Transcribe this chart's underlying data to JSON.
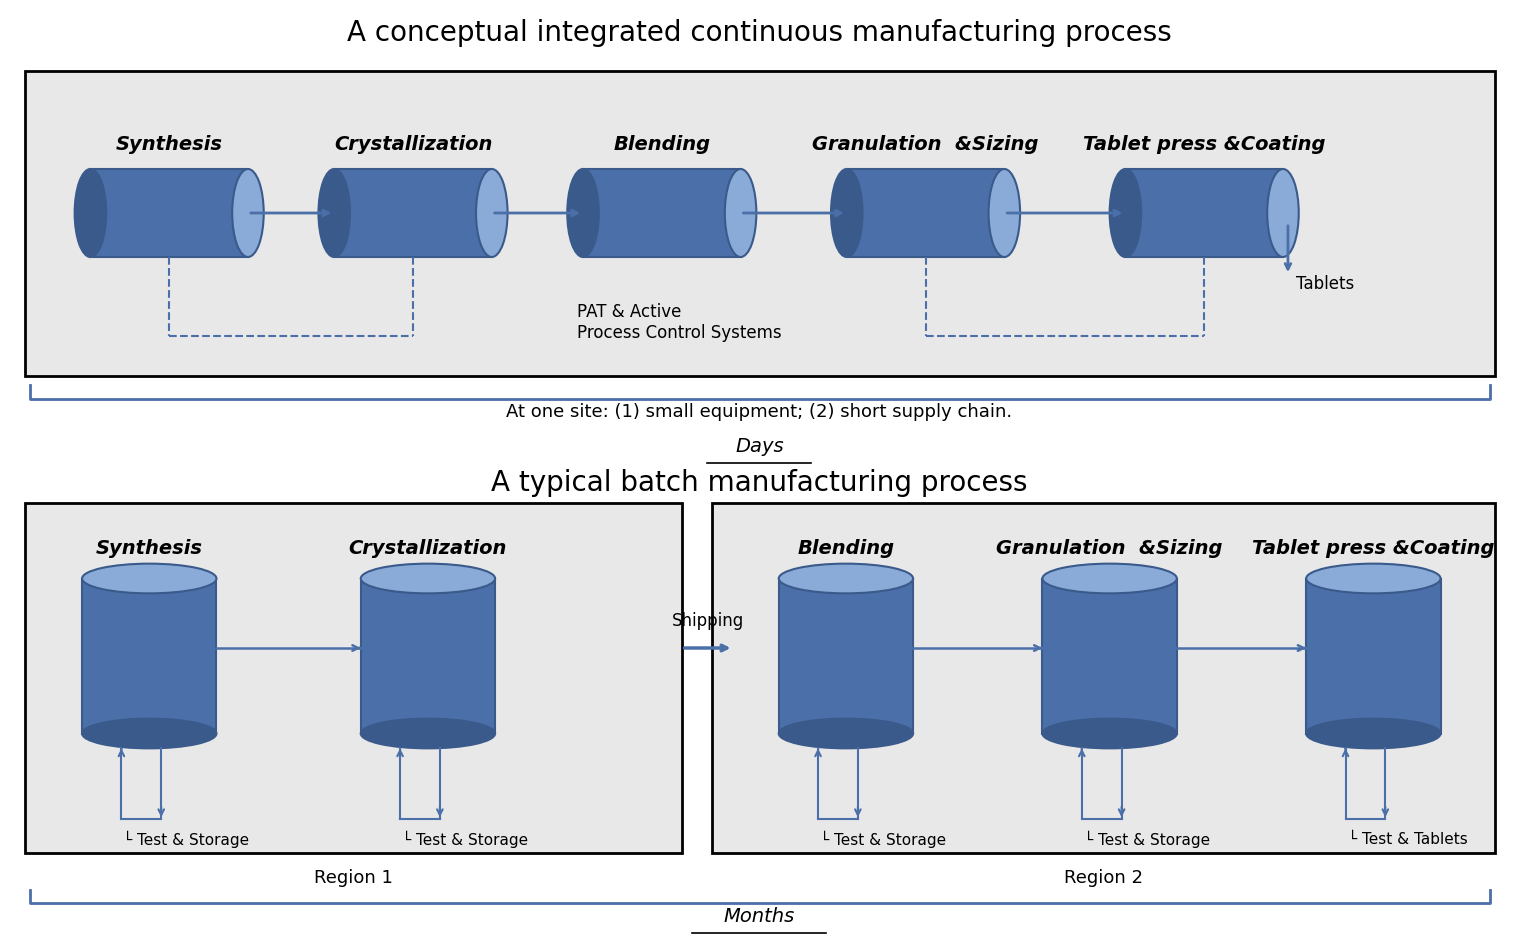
{
  "title_continuous": "A conceptual integrated continuous manufacturing process",
  "title_batch": "A typical batch manufacturing process",
  "continuous_labels": [
    "Synthesis",
    "Crystallization",
    "Blending",
    "Granulation  &Sizing",
    "Tablet press &Coating"
  ],
  "batch_region1_labels": [
    "Synthesis",
    "Crystallization"
  ],
  "batch_region2_labels": [
    "Blending",
    "Granulation  &Sizing",
    "Tablet press &Coating"
  ],
  "batch_region1_storage": [
    "Test & Storage",
    "Test & Storage"
  ],
  "batch_region2_storage": [
    "Test & Storage",
    "Test & Storage",
    "Test & Tablets"
  ],
  "continuous_note": "At one site: (1) small equipment; (2) short supply chain.",
  "continuous_time": "Days",
  "batch_time": "Months",
  "pat_text": "PAT & Active\nProcess Control Systems",
  "tablets_text": "Tablets",
  "shipping_text": "Shipping",
  "region1_text": "Region 1",
  "region2_text": "Region 2",
  "cylinder_color_main": "#4B6FA8",
  "cylinder_color_dark": "#3A5A8C",
  "cylinder_color_light": "#7A9CC8",
  "cylinder_color_top": "#8AAAD8",
  "bg_color_continuous": "#E8E8E8",
  "bg_color_batch": "#E8E8E8",
  "bg_color_figure": "#FFFFFF",
  "arrow_color": "#4B6FA8",
  "dashed_color": "#4B6FA8",
  "title_fontsize": 20,
  "label_fontsize": 14,
  "note_fontsize": 13,
  "small_fontsize": 12
}
